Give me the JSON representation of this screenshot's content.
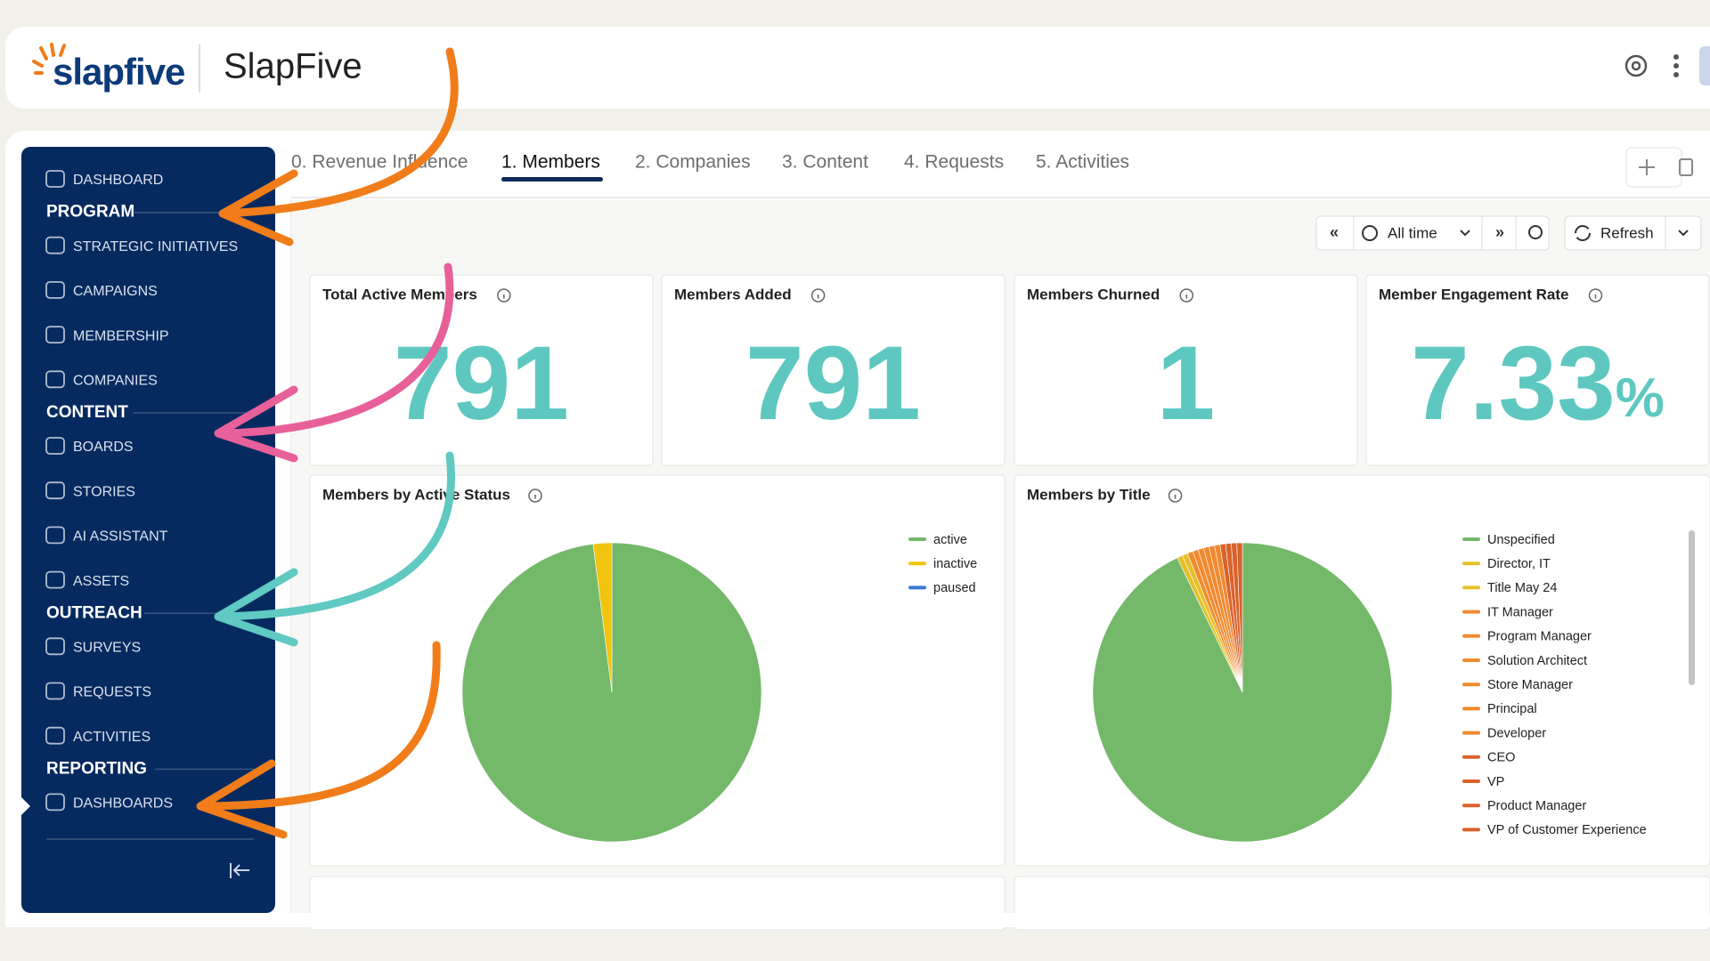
{
  "header": {
    "logo": "slapfive",
    "title": "SlapFive"
  },
  "sidebar": {
    "sections": [
      {
        "items": [
          "DASHBOARD"
        ]
      },
      {
        "title": "PROGRAM",
        "items": [
          "STRATEGIC INITIATIVES",
          "CAMPAIGNS",
          "MEMBERSHIP",
          "COMPANIES"
        ]
      },
      {
        "title": "CONTENT",
        "items": [
          "BOARDS",
          "STORIES",
          "AI ASSISTANT",
          "ASSETS"
        ]
      },
      {
        "title": "OUTREACH",
        "items": [
          "SURVEYS",
          "REQUESTS",
          "ACTIVITIES"
        ]
      },
      {
        "title": "REPORTING",
        "items": [
          "DASHBOARDS"
        ]
      }
    ]
  },
  "tabs": [
    "0. Revenue Influence",
    "1. Members",
    "2. Companies",
    "3. Content",
    "4. Requests",
    "5. Activities"
  ],
  "toolbar": {
    "range": "All time",
    "refresh": "Refresh"
  },
  "kpis": [
    {
      "title": "Total Active Members",
      "value": 791
    },
    {
      "title": "Members Added",
      "value": 791
    },
    {
      "title": "Members Churned",
      "value": 1
    },
    {
      "title": "Member Engagement Rate",
      "value": 7.33,
      "unit": "%"
    }
  ],
  "pies": [
    {
      "type": "pie",
      "title": "Members by Active Status",
      "categories": [
        "active",
        "inactive",
        "paused"
      ],
      "values": [
        98,
        2,
        0
      ],
      "colors": [
        "#74b86a",
        "#f1c40f",
        "#3a7bd5"
      ]
    },
    {
      "type": "pie",
      "title": "Members by Title",
      "categories": [
        "Unspecified",
        "Director, IT",
        "Title May 24",
        "IT Manager",
        "Program Manager",
        "Solution Architect",
        "Store Manager",
        "Principal",
        "Developer",
        "CEO",
        "VP",
        "Product Manager",
        "VP of Customer Experience"
      ],
      "values": [
        93,
        0.6,
        0.6,
        0.6,
        0.6,
        0.6,
        0.6,
        0.6,
        0.6,
        0.6,
        0.6,
        0.6,
        0.6
      ],
      "colors": [
        "#74b86a",
        "#e6c02a",
        "#e6c02a",
        "#f08a30",
        "#f08a30",
        "#f08a30",
        "#f08a30",
        "#f08a30",
        "#f08a30",
        "#d9622b",
        "#d9622b",
        "#d9622b",
        "#d9622b"
      ]
    }
  ]
}
